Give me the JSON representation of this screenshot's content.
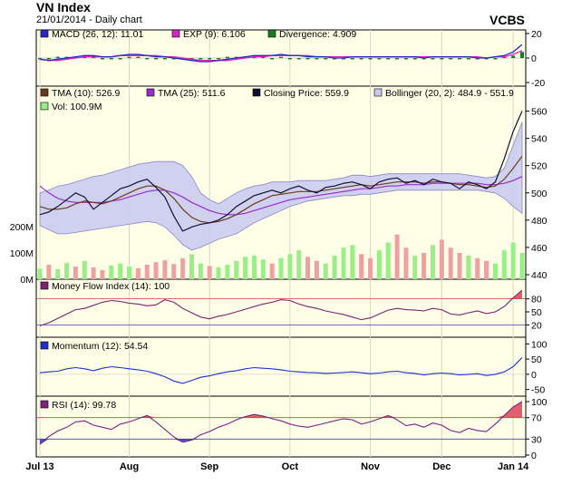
{
  "header": {
    "title": "VN Index",
    "subtitle": "21/01/2014 - Daily chart",
    "brand": "VCBS"
  },
  "colors": {
    "plot_bg": "#ffffe8",
    "macd": "#2828c8",
    "exp": "#e020c0",
    "divergence": "#207820",
    "tma10": "#6b3a1a",
    "tma25": "#9a2ad0",
    "close": "#101030",
    "bollinger_fill": "#c8c8f0",
    "bollinger_line": "#8888cc",
    "vol_up": "#99ee88",
    "vol_down": "#f0a0a0",
    "mfi": "#802070",
    "momentum": "#2030d0",
    "rsi": "#802080",
    "overbought_fill": "#e06070",
    "oversold_fill": "#5050d0",
    "level_line": "#d04040"
  },
  "chart_data": [
    {
      "type": "line",
      "panel": "macd",
      "legend": [
        {
          "label": "MACD (26, 12): 11.01",
          "color": "#2828c8"
        },
        {
          "label": "EXP (9): 6.106",
          "color": "#e020c0"
        },
        {
          "label": "Divergence: 4.909",
          "color": "#207820"
        }
      ],
      "yticks": [
        "20",
        "0",
        "-20"
      ],
      "ylim": [
        -20,
        20
      ],
      "series": [
        {
          "name": "MACD",
          "values": [
            -1,
            -2,
            -1,
            0,
            1,
            2,
            2,
            1,
            1,
            2,
            3,
            3,
            2,
            1,
            1,
            0,
            -1,
            -2,
            -3,
            -3,
            -2,
            -1,
            0,
            1,
            2,
            2,
            2,
            3,
            2,
            2,
            1,
            1,
            1,
            0,
            0,
            1,
            1,
            1,
            1,
            1,
            1,
            1,
            1,
            0,
            1,
            1,
            1,
            1,
            1,
            0,
            0,
            1,
            2,
            5,
            11
          ]
        },
        {
          "name": "EXP",
          "values": [
            -1,
            -2,
            -2,
            -1,
            0,
            1,
            1,
            1,
            1,
            2,
            2,
            2,
            2,
            2,
            1,
            1,
            0,
            -1,
            -2,
            -2,
            -2,
            -2,
            -1,
            0,
            1,
            1,
            2,
            2,
            2,
            2,
            2,
            1,
            1,
            1,
            1,
            1,
            1,
            1,
            1,
            1,
            1,
            1,
            1,
            1,
            1,
            1,
            1,
            1,
            1,
            1,
            0,
            1,
            1,
            3,
            6
          ]
        },
        {
          "name": "Divergence",
          "values": [
            0,
            0,
            1,
            1,
            1,
            1,
            1,
            0,
            0,
            0,
            1,
            1,
            0,
            -1,
            0,
            -1,
            -1,
            -1,
            -1,
            -1,
            0,
            1,
            1,
            1,
            1,
            1,
            0,
            1,
            0,
            0,
            -1,
            0,
            0,
            -1,
            -1,
            0,
            0,
            0,
            0,
            0,
            0,
            0,
            0,
            -1,
            0,
            0,
            0,
            0,
            0,
            -1,
            0,
            0,
            1,
            2,
            5
          ]
        }
      ]
    },
    {
      "type": "line",
      "panel": "price",
      "legend": [
        {
          "label": "TMA (10): 526.9",
          "color": "#6b3a1a"
        },
        {
          "label": "TMA (25): 511.6",
          "color": "#9a2ad0"
        },
        {
          "label": "Closing Price: 559.9",
          "color": "#101030"
        },
        {
          "label": "Bollinger (20, 2): 484.9 - 551.9",
          "color": "#c8c8f0"
        },
        {
          "label": "Vol: 100.9M",
          "color": "#99ee88"
        }
      ],
      "yticks": [
        "560",
        "540",
        "520",
        "500",
        "480",
        "460",
        "440"
      ],
      "ylim": [
        440,
        565
      ],
      "vol_ticks": [
        "200M",
        "100M",
        "0M"
      ],
      "vol_max": 300,
      "series": [
        {
          "name": "Closing Price",
          "values": [
            484,
            486,
            490,
            495,
            500,
            497,
            488,
            493,
            498,
            503,
            505,
            508,
            510,
            504,
            497,
            483,
            472,
            475,
            477,
            478,
            480,
            484,
            490,
            494,
            498,
            500,
            502,
            500,
            503,
            505,
            502,
            500,
            504,
            505,
            507,
            508,
            506,
            503,
            508,
            510,
            511,
            507,
            509,
            506,
            510,
            508,
            507,
            503,
            508,
            506,
            503,
            508,
            525,
            545,
            560
          ]
        },
        {
          "name": "TMA (10)",
          "values": [
            490,
            488,
            488,
            489,
            492,
            494,
            493,
            492,
            494,
            497,
            500,
            503,
            505,
            505,
            502,
            496,
            488,
            482,
            479,
            478,
            479,
            481,
            484,
            488,
            492,
            495,
            498,
            499,
            500,
            501,
            501,
            501,
            502,
            503,
            504,
            505,
            506,
            505,
            506,
            507,
            508,
            508,
            508,
            507,
            508,
            508,
            507,
            506,
            506,
            505,
            504,
            505,
            510,
            518,
            527
          ]
        },
        {
          "name": "TMA (25)",
          "values": [
            505,
            500,
            496,
            494,
            493,
            493,
            493,
            493,
            494,
            495,
            497,
            499,
            501,
            502,
            502,
            500,
            497,
            493,
            490,
            487,
            485,
            484,
            484,
            485,
            487,
            489,
            491,
            493,
            495,
            496,
            497,
            498,
            499,
            500,
            501,
            502,
            503,
            503,
            504,
            505,
            505,
            506,
            506,
            506,
            507,
            507,
            507,
            507,
            507,
            507,
            506,
            506,
            507,
            509,
            512
          ]
        },
        {
          "name": "Bollinger upper",
          "values": [
            500,
            502,
            505,
            506,
            508,
            510,
            512,
            513,
            515,
            517,
            519,
            521,
            522,
            523,
            523,
            523,
            520,
            512,
            500,
            495,
            492,
            496,
            500,
            503,
            505,
            506,
            508,
            508,
            508,
            509,
            509,
            509,
            509,
            510,
            511,
            513,
            513,
            512,
            513,
            514,
            514,
            514,
            514,
            514,
            514,
            514,
            514,
            514,
            513,
            512,
            511,
            512,
            518,
            535,
            552
          ]
        },
        {
          "name": "Bollinger lower",
          "values": [
            476,
            473,
            470,
            470,
            471,
            472,
            473,
            474,
            475,
            476,
            477,
            478,
            479,
            478,
            475,
            469,
            462,
            458,
            460,
            463,
            466,
            468,
            470,
            474,
            478,
            481,
            484,
            487,
            490,
            492,
            494,
            495,
            496,
            497,
            498,
            498,
            499,
            499,
            500,
            501,
            502,
            502,
            502,
            502,
            502,
            502,
            502,
            502,
            502,
            502,
            501,
            500,
            496,
            490,
            485
          ]
        },
        {
          "name": "Vol",
          "values": [
            40,
            55,
            38,
            62,
            48,
            70,
            45,
            35,
            52,
            60,
            48,
            42,
            55,
            65,
            72,
            58,
            80,
            95,
            60,
            50,
            45,
            55,
            70,
            85,
            90,
            75,
            60,
            80,
            95,
            110,
            85,
            70,
            60,
            90,
            120,
            130,
            95,
            80,
            110,
            140,
            170,
            120,
            90,
            100,
            130,
            150,
            120,
            100,
            90,
            80,
            70,
            60,
            110,
            140,
            100
          ],
          "up": [
            1,
            0,
            1,
            1,
            0,
            1,
            0,
            0,
            1,
            1,
            1,
            0,
            0,
            0,
            0,
            0,
            0,
            1,
            1,
            0,
            1,
            1,
            1,
            1,
            1,
            1,
            0,
            1,
            1,
            1,
            0,
            0,
            1,
            1,
            1,
            1,
            0,
            0,
            1,
            1,
            0,
            0,
            1,
            0,
            1,
            0,
            0,
            0,
            1,
            0,
            0,
            1,
            1,
            1,
            1
          ]
        }
      ]
    },
    {
      "type": "line",
      "panel": "mfi",
      "legend": [
        {
          "label": "Money Flow Index (14): 100",
          "color": "#802070"
        }
      ],
      "yticks": [
        "80",
        "50",
        "20"
      ],
      "ylim": [
        0,
        100
      ],
      "levels": [
        80,
        20
      ],
      "series": [
        {
          "name": "Money Flow Index",
          "values": [
            18,
            25,
            35,
            45,
            55,
            58,
            65,
            72,
            76,
            74,
            70,
            68,
            64,
            66,
            78,
            72,
            58,
            48,
            38,
            34,
            40,
            44,
            50,
            56,
            62,
            68,
            72,
            78,
            76,
            68,
            62,
            58,
            52,
            48,
            44,
            38,
            32,
            36,
            45,
            54,
            58,
            55,
            54,
            52,
            58,
            55,
            45,
            43,
            48,
            52,
            46,
            50,
            62,
            82,
            100
          ]
        }
      ]
    },
    {
      "type": "line",
      "panel": "momentum",
      "legend": [
        {
          "label": "Momentum (12): 54.54",
          "color": "#2030d0"
        }
      ],
      "yticks": [
        "100",
        "50",
        "0",
        "-50"
      ],
      "ylim": [
        -60,
        110
      ],
      "series": [
        {
          "name": "Momentum",
          "values": [
            5,
            8,
            10,
            18,
            22,
            18,
            12,
            20,
            25,
            22,
            18,
            15,
            10,
            2,
            -8,
            -22,
            -30,
            -20,
            -10,
            -5,
            2,
            8,
            12,
            18,
            22,
            20,
            18,
            15,
            10,
            8,
            6,
            5,
            3,
            4,
            6,
            8,
            5,
            2,
            4,
            8,
            10,
            5,
            3,
            -2,
            2,
            4,
            2,
            -2,
            0,
            2,
            -4,
            0,
            8,
            25,
            55
          ]
        }
      ]
    },
    {
      "type": "line",
      "panel": "rsi",
      "legend": [
        {
          "label": "RSI (14): 99.78",
          "color": "#802080"
        }
      ],
      "yticks": [
        "100",
        "70",
        "30",
        "0"
      ],
      "ylim": [
        0,
        100
      ],
      "levels": [
        70,
        30
      ],
      "series": [
        {
          "name": "RSI",
          "values": [
            20,
            35,
            45,
            52,
            62,
            64,
            56,
            52,
            48,
            58,
            62,
            68,
            74,
            62,
            48,
            34,
            24,
            28,
            38,
            44,
            52,
            58,
            66,
            72,
            76,
            73,
            68,
            64,
            58,
            54,
            52,
            56,
            60,
            64,
            68,
            66,
            58,
            62,
            68,
            74,
            66,
            55,
            58,
            52,
            60,
            56,
            46,
            42,
            50,
            46,
            44,
            58,
            74,
            90,
            100
          ]
        }
      ]
    },
    {
      "type": "axis",
      "xticks": [
        {
          "label": "Jul 13",
          "index": 0
        },
        {
          "label": "Aug",
          "index": 10
        },
        {
          "label": "Sep",
          "index": 19
        },
        {
          "label": "Oct",
          "index": 28
        },
        {
          "label": "Nov",
          "index": 37
        },
        {
          "label": "Dec",
          "index": 45
        },
        {
          "label": "Jan 14",
          "index": 53
        }
      ]
    }
  ]
}
